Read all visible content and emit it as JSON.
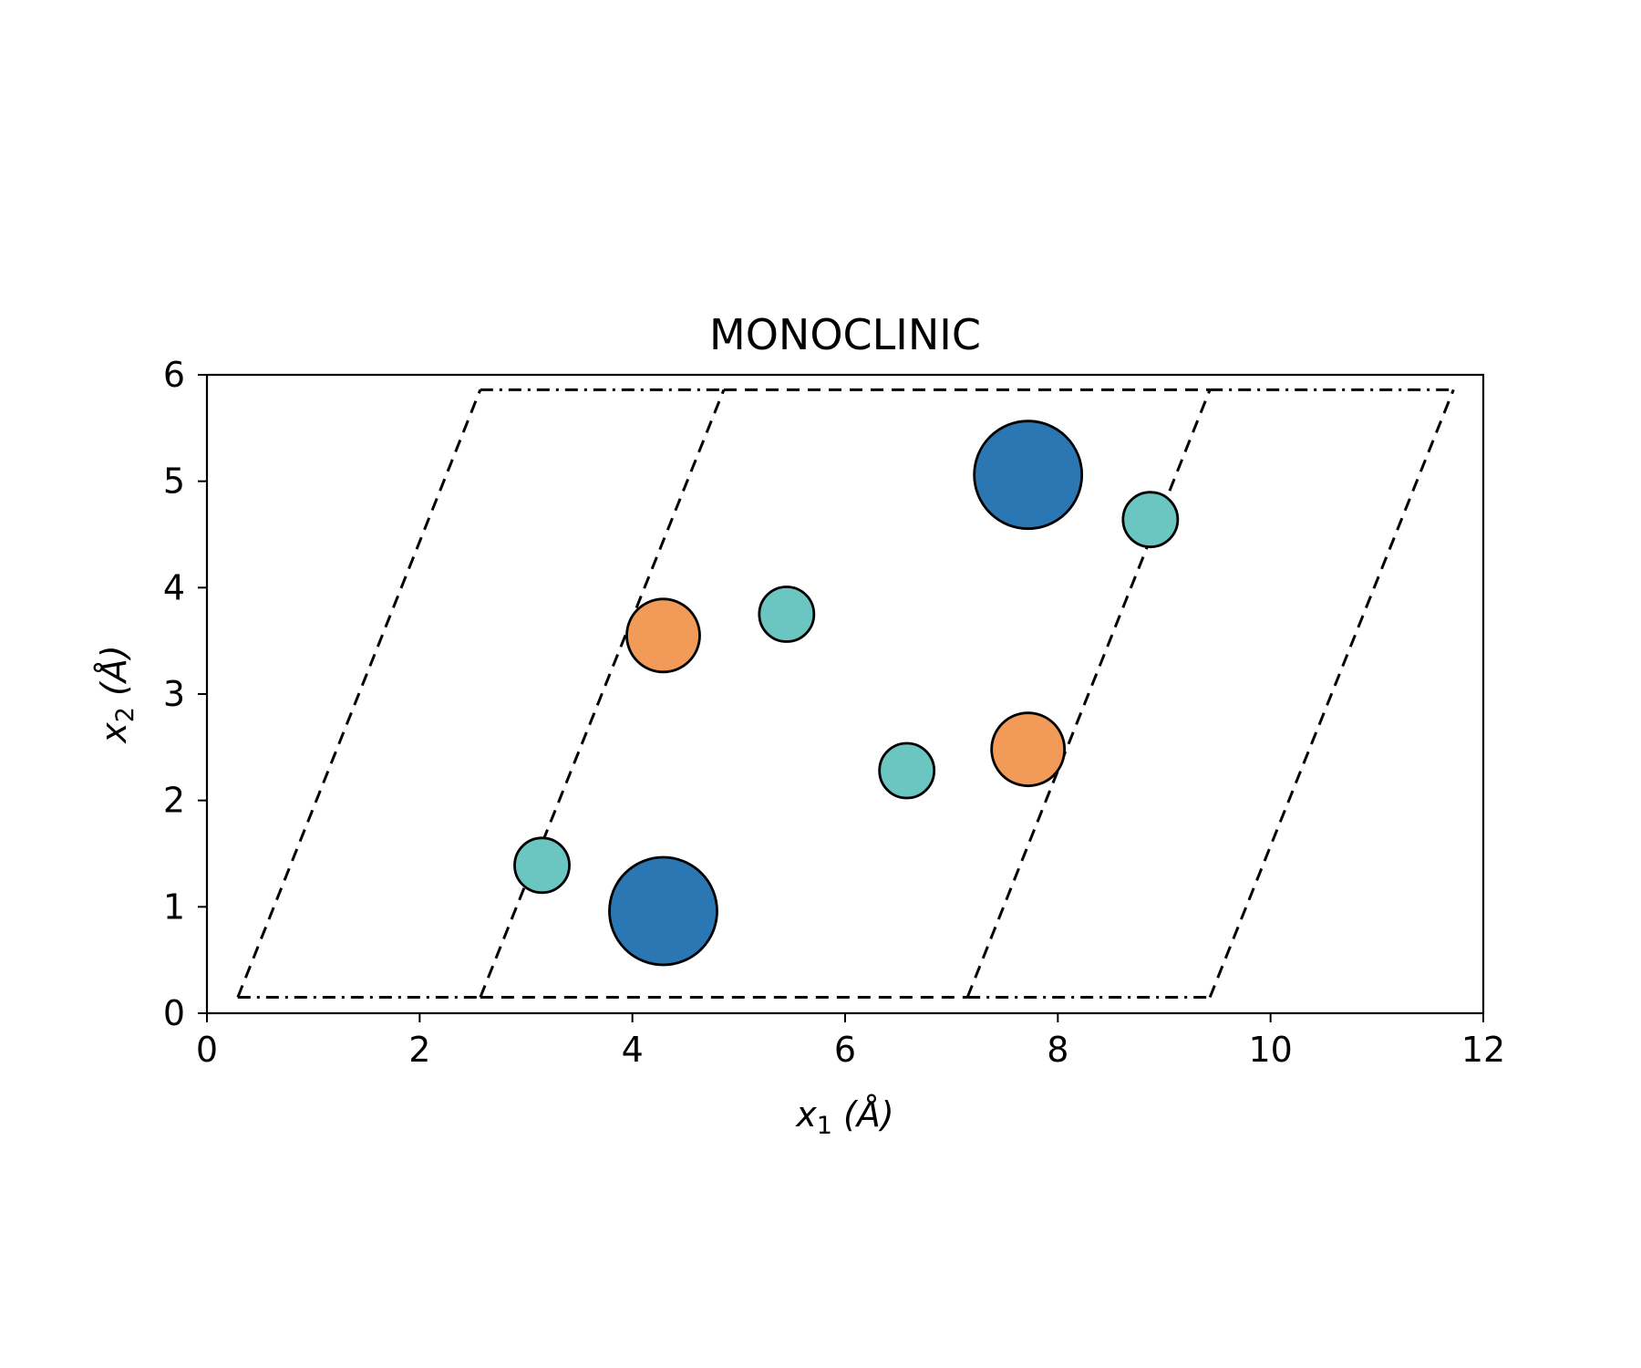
{
  "chart_data": {
    "type": "scatter",
    "title": "MONOCLINIC",
    "xlabel": {
      "symbol": "x",
      "subscript": "1",
      "unit": " (Å)"
    },
    "ylabel": {
      "symbol": "x",
      "subscript": "2",
      "unit": " (Å)"
    },
    "xlim": [
      0,
      12
    ],
    "ylim": [
      0,
      6
    ],
    "xticks": [
      0,
      2,
      4,
      6,
      8,
      10,
      12
    ],
    "yticks": [
      0,
      1,
      2,
      3,
      4,
      5,
      6
    ],
    "grid": false,
    "colors": {
      "large": "#2a77b4",
      "medium": "#f29b58",
      "small": "#6bc6c1",
      "edge": "#000000"
    },
    "points": [
      {
        "x": 4.29,
        "y": 0.96,
        "size": "large"
      },
      {
        "x": 7.72,
        "y": 5.06,
        "size": "large"
      },
      {
        "x": 4.29,
        "y": 3.55,
        "size": "medium"
      },
      {
        "x": 7.72,
        "y": 2.48,
        "size": "medium"
      },
      {
        "x": 3.15,
        "y": 1.39,
        "size": "small"
      },
      {
        "x": 5.45,
        "y": 3.75,
        "size": "small"
      },
      {
        "x": 6.58,
        "y": 2.28,
        "size": "small"
      },
      {
        "x": 8.87,
        "y": 4.64,
        "size": "small"
      }
    ],
    "cell_lines": [
      {
        "style": "dashdot",
        "points": [
          [
            0.29,
            0.15
          ],
          [
            2.57,
            0.15
          ]
        ]
      },
      {
        "style": "dashed",
        "points": [
          [
            2.57,
            0.15
          ],
          [
            7.15,
            0.15
          ]
        ]
      },
      {
        "style": "dashdot",
        "points": [
          [
            7.15,
            0.15
          ],
          [
            9.43,
            0.15
          ]
        ]
      },
      {
        "style": "dashdot",
        "points": [
          [
            2.57,
            5.86
          ],
          [
            4.86,
            5.86
          ]
        ]
      },
      {
        "style": "dashed",
        "points": [
          [
            4.86,
            5.86
          ],
          [
            9.43,
            5.86
          ]
        ]
      },
      {
        "style": "dashdot",
        "points": [
          [
            9.43,
            5.86
          ],
          [
            11.72,
            5.86
          ]
        ]
      },
      {
        "style": "dashed",
        "points": [
          [
            0.29,
            0.15
          ],
          [
            2.57,
            5.86
          ]
        ]
      },
      {
        "style": "dashed",
        "points": [
          [
            2.57,
            0.15
          ],
          [
            4.86,
            5.86
          ]
        ]
      },
      {
        "style": "dashed",
        "points": [
          [
            7.15,
            0.15
          ],
          [
            9.43,
            5.86
          ]
        ]
      },
      {
        "style": "dashed",
        "points": [
          [
            9.43,
            0.15
          ],
          [
            11.72,
            5.86
          ]
        ]
      }
    ]
  }
}
